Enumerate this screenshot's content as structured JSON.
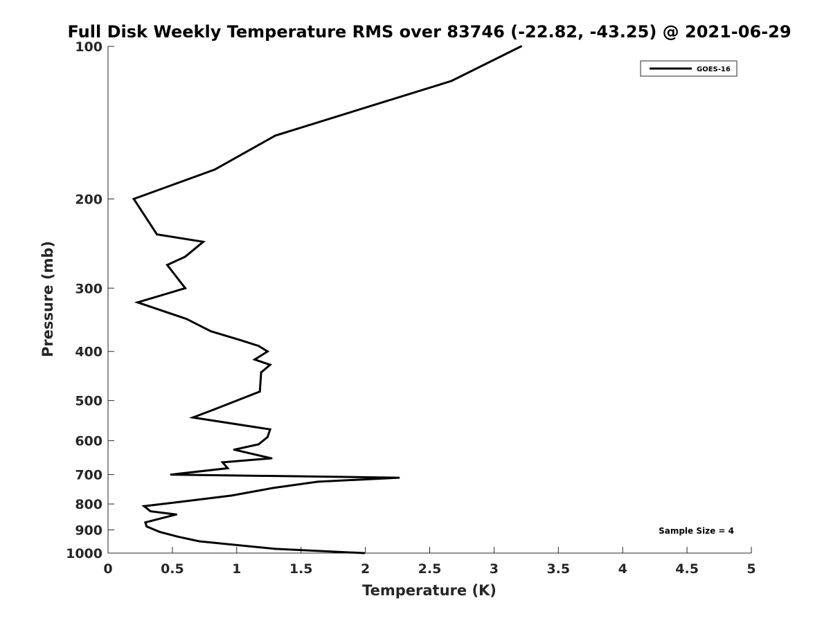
{
  "chart_data": {
    "type": "line",
    "title": "Full Disk Weekly Temperature RMS over 83746 (-22.82, -43.25) @ 2021-06-29",
    "xlabel": "Temperature (K)",
    "ylabel": "Pressure (mb)",
    "xlim": [
      0,
      5
    ],
    "ylim": [
      100,
      1000
    ],
    "y_scale": "log",
    "y_reversed": true,
    "x_ticks": [
      0,
      0.5,
      1,
      1.5,
      2,
      2.5,
      3,
      3.5,
      4,
      4.5,
      5
    ],
    "x_tick_labels": [
      "0",
      "0.5",
      "1",
      "1.5",
      "2",
      "2.5",
      "3",
      "3.5",
      "4",
      "4.5",
      "5"
    ],
    "y_ticks": [
      100,
      200,
      300,
      400,
      500,
      600,
      700,
      800,
      900,
      1000
    ],
    "y_tick_labels": [
      "100",
      "200",
      "300",
      "400",
      "500",
      "600",
      "700",
      "800",
      "900",
      "1000"
    ],
    "grid": false,
    "legend_position": "top-right",
    "annotation": "Sample Size = 4",
    "line_color": "#000000",
    "series": [
      {
        "name": "GOES-16",
        "x": [
          3.21,
          2.67,
          1.3,
          0.83,
          0.2,
          0.38,
          0.74,
          0.6,
          0.46,
          0.6,
          0.23,
          0.61,
          0.8,
          1.03,
          1.17,
          1.24,
          1.14,
          1.26,
          1.19,
          1.18,
          0.83,
          0.66,
          1.26,
          1.24,
          1.17,
          0.98,
          1.27,
          0.89,
          0.93,
          0.49,
          2.26,
          1.63,
          1.28,
          0.96,
          0.55,
          0.28,
          0.33,
          0.53,
          0.29,
          0.3,
          0.4,
          0.54,
          0.71,
          1.3,
          1.99
        ],
        "y": [
          100,
          117,
          150,
          175,
          200,
          235,
          243,
          260,
          270,
          300,
          320,
          345,
          365,
          380,
          390,
          400,
          415,
          425,
          440,
          480,
          520,
          540,
          570,
          590,
          610,
          625,
          650,
          662,
          680,
          700,
          710,
          723,
          744,
          770,
          793,
          808,
          827,
          839,
          870,
          886,
          908,
          928,
          948,
          981,
          1000
        ]
      }
    ]
  }
}
